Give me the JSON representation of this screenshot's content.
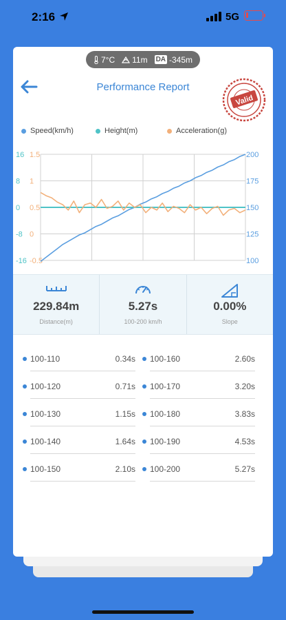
{
  "status_bar": {
    "time": "2:16",
    "network": "5G"
  },
  "conditions": {
    "temperature": "7°C",
    "altitude": "11m",
    "da_label": "DA",
    "density_altitude": "-345m"
  },
  "header": {
    "title": "Performance Report",
    "stamp_text": "Valid"
  },
  "legend": [
    {
      "name": "Speed(km/h)",
      "color": "#5a9ee0"
    },
    {
      "name": "Height(m)",
      "color": "#4fc3c7"
    },
    {
      "name": "Acceleration(g)",
      "color": "#f2b07a"
    }
  ],
  "chart_data": {
    "type": "line",
    "axes": {
      "height_left": {
        "ticks": [
          "16",
          "8",
          "0",
          "-8",
          "-16"
        ],
        "range": [
          -16,
          16
        ],
        "color": "#4fc3c7"
      },
      "acceleration_left": {
        "ticks": [
          "1.5",
          "1",
          "0.5",
          "0",
          "-0.5"
        ],
        "range": [
          -0.5,
          1.5
        ],
        "color": "#f2b07a"
      },
      "speed_right": {
        "ticks": [
          "200",
          "175",
          "150",
          "125",
          "100"
        ],
        "range": [
          100,
          200
        ],
        "color": "#5a9ee0"
      }
    },
    "grid": true,
    "series": [
      {
        "name": "Speed(km/h)",
        "axis": "speed_right",
        "values": [
          99,
          103,
          107,
          111,
          115,
          118,
          121,
          124,
          126,
          129,
          132,
          134,
          137,
          140,
          142,
          145,
          148,
          150,
          153,
          155,
          158,
          160,
          163,
          165,
          168,
          170,
          173,
          175,
          178,
          180,
          183,
          185,
          188,
          190,
          193,
          195,
          198,
          200
        ]
      },
      {
        "name": "Height(m)",
        "axis": "height_left",
        "values": [
          0,
          0,
          0,
          0,
          0,
          0,
          0,
          0,
          0,
          0,
          0,
          0,
          0,
          0,
          0,
          0,
          0,
          0,
          0,
          0,
          0,
          0,
          0,
          0,
          0,
          0,
          0,
          0,
          0,
          0,
          0,
          0,
          0,
          0,
          0,
          0,
          0,
          0
        ]
      },
      {
        "name": "Acceleration(g)",
        "axis": "acceleration_left",
        "values": [
          0.78,
          0.72,
          0.68,
          0.6,
          0.55,
          0.45,
          0.62,
          0.4,
          0.55,
          0.58,
          0.5,
          0.65,
          0.48,
          0.52,
          0.62,
          0.45,
          0.58,
          0.5,
          0.55,
          0.4,
          0.5,
          0.45,
          0.58,
          0.42,
          0.52,
          0.48,
          0.4,
          0.55,
          0.45,
          0.5,
          0.38,
          0.48,
          0.52,
          0.35,
          0.45,
          0.48,
          0.4,
          0.45
        ]
      }
    ]
  },
  "stats": [
    {
      "value": "229.84m",
      "label": "Distance(m)",
      "icon": "ruler-icon"
    },
    {
      "value": "5.27s",
      "label": "100-200 km/h",
      "icon": "speedometer-icon"
    },
    {
      "value": "0.00%",
      "label": "Slope",
      "icon": "slope-icon"
    }
  ],
  "splits": [
    {
      "left_label": "100-110",
      "left_time": "0.34s",
      "right_label": "100-160",
      "right_time": "2.60s"
    },
    {
      "left_label": "100-120",
      "left_time": "0.71s",
      "right_label": "100-170",
      "right_time": "3.20s"
    },
    {
      "left_label": "100-130",
      "left_time": "1.15s",
      "right_label": "100-180",
      "right_time": "3.83s"
    },
    {
      "left_label": "100-140",
      "left_time": "1.64s",
      "right_label": "100-190",
      "right_time": "4.53s"
    },
    {
      "left_label": "100-150",
      "left_time": "2.10s",
      "right_label": "100-200",
      "right_time": "5.27s"
    }
  ]
}
